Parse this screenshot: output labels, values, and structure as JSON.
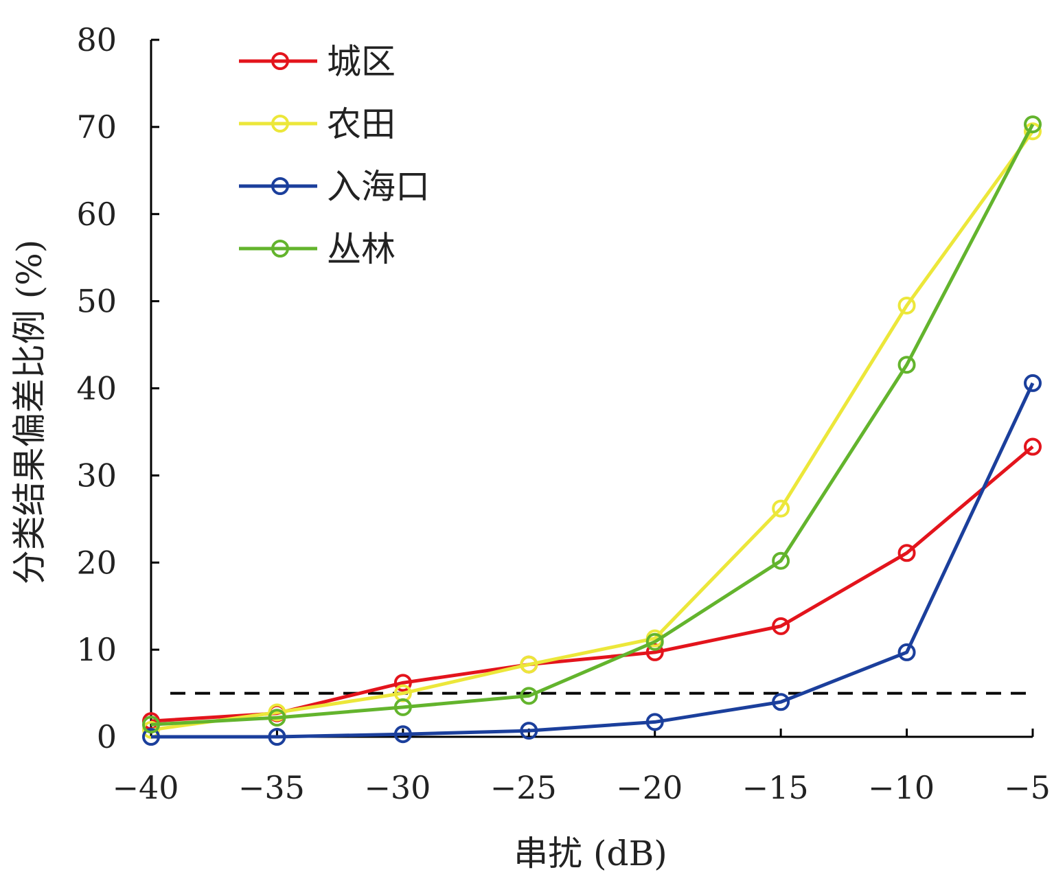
{
  "chart_data": {
    "type": "line",
    "title": "",
    "xlabel": "串扰 (dB)",
    "ylabel": "分类结果偏差比例 (%)",
    "x": [
      -40,
      -35,
      -30,
      -25,
      -20,
      -15,
      -10,
      -5
    ],
    "xticklabels": [
      "−40",
      "−35",
      "−30",
      "−25",
      "−20",
      "−15",
      "−10",
      "−5"
    ],
    "xlim": [
      -40,
      -5
    ],
    "ylim": [
      0,
      80
    ],
    "yticks": [
      0,
      10,
      20,
      30,
      40,
      50,
      60,
      70,
      80
    ],
    "yticklabels": [
      "0",
      "10",
      "20",
      "30",
      "40",
      "50",
      "60",
      "70",
      "80"
    ],
    "reference_line": {
      "y": 5,
      "style": "dashed",
      "color": "#000000"
    },
    "legend_position": "top-left",
    "series": [
      {
        "name": "城区",
        "color": "#e3141c",
        "values": [
          1.8,
          2.7,
          6.2,
          8.3,
          9.7,
          12.7,
          21.1,
          33.3
        ]
      },
      {
        "name": "农田",
        "color": "#ece73a",
        "values": [
          0.8,
          2.8,
          5.0,
          8.3,
          11.3,
          26.2,
          49.5,
          69.5
        ]
      },
      {
        "name": "入海口",
        "color": "#1b3f9c",
        "values": [
          0.0,
          0.0,
          0.3,
          0.7,
          1.7,
          4.0,
          9.7,
          40.6
        ]
      },
      {
        "name": "丛林",
        "color": "#63b42d",
        "values": [
          1.4,
          2.2,
          3.4,
          4.7,
          10.9,
          20.2,
          42.7,
          70.3
        ]
      }
    ]
  }
}
